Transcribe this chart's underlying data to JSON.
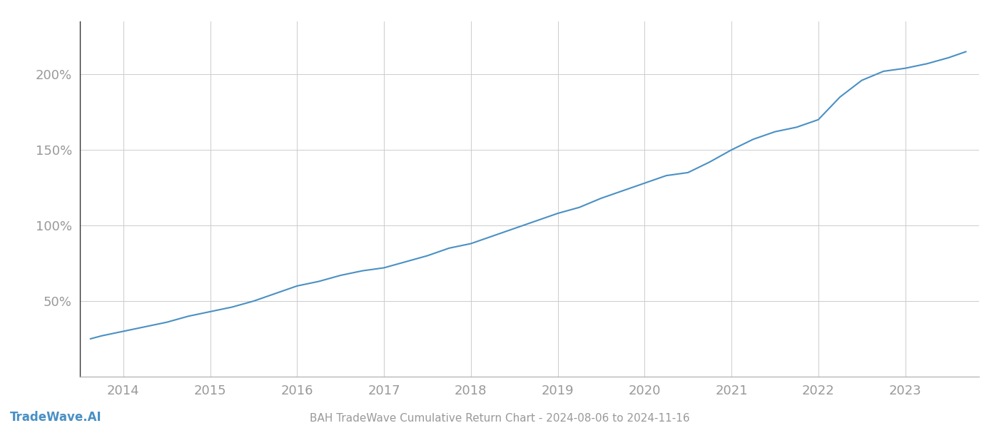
{
  "title": "BAH TradeWave Cumulative Return Chart - 2024-08-06 to 2024-11-16",
  "watermark": "TradeWave.AI",
  "line_color": "#4a90c4",
  "background_color": "#ffffff",
  "grid_color": "#cccccc",
  "x_years": [
    2014,
    2015,
    2016,
    2017,
    2018,
    2019,
    2020,
    2021,
    2022,
    2023
  ],
  "x_data": [
    2013.62,
    2013.75,
    2014.0,
    2014.25,
    2014.5,
    2014.75,
    2015.0,
    2015.25,
    2015.5,
    2015.75,
    2016.0,
    2016.25,
    2016.5,
    2016.75,
    2017.0,
    2017.25,
    2017.5,
    2017.75,
    2018.0,
    2018.25,
    2018.5,
    2018.75,
    2019.0,
    2019.25,
    2019.5,
    2019.75,
    2020.0,
    2020.25,
    2020.5,
    2020.75,
    2021.0,
    2021.25,
    2021.5,
    2021.75,
    2022.0,
    2022.25,
    2022.5,
    2022.75,
    2023.0,
    2023.25,
    2023.5,
    2023.7
  ],
  "y_data": [
    25,
    27,
    30,
    33,
    36,
    40,
    43,
    46,
    50,
    55,
    60,
    63,
    67,
    70,
    72,
    76,
    80,
    85,
    88,
    93,
    98,
    103,
    108,
    112,
    118,
    123,
    128,
    133,
    135,
    142,
    150,
    157,
    162,
    165,
    170,
    185,
    196,
    202,
    204,
    207,
    211,
    215
  ],
  "yticks": [
    50,
    100,
    150,
    200
  ],
  "ytick_labels": [
    "50%",
    "100%",
    "150%",
    "200%"
  ],
  "xlim": [
    2013.5,
    2023.85
  ],
  "ylim": [
    0,
    235
  ],
  "title_fontsize": 11,
  "watermark_fontsize": 12,
  "tick_color": "#999999",
  "tick_fontsize": 13,
  "spine_color": "#333333",
  "bottom_spine_color": "#aaaaaa"
}
